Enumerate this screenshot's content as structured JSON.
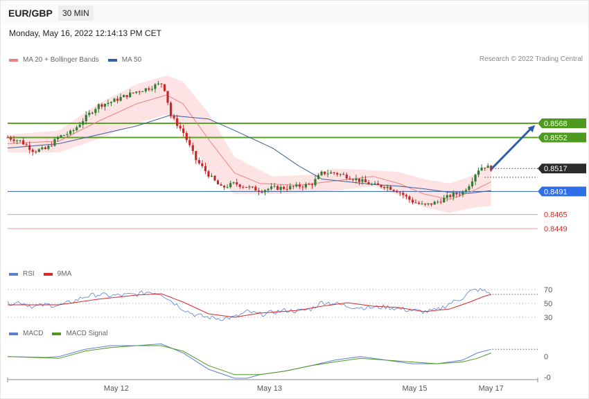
{
  "header": {
    "pair": "EUR/GBP",
    "timeframe": "30 MIN"
  },
  "datetime": "Monday, May 16, 2022 12:14:13 PM CET",
  "copyright": "Research © 2022 Trading Central",
  "legend_main": [
    {
      "label": "MA 20 + Bollinger Bands",
      "color": "#f08080"
    },
    {
      "label": "MA 50",
      "color": "#3a5e9c"
    }
  ],
  "legend_rsi": [
    {
      "label": "RSI",
      "color": "#5b7fd6"
    },
    {
      "label": "9MA",
      "color": "#d9262a"
    }
  ],
  "legend_macd": [
    {
      "label": "MACD",
      "color": "#5b7fd6"
    },
    {
      "label": "MACD Signal",
      "color": "#4e9a1e"
    }
  ],
  "chart_data": {
    "type": "candlestick",
    "x_labels": [
      {
        "label": "May 12",
        "t": 0.205
      },
      {
        "label": "May 13",
        "t": 0.494
      },
      {
        "label": "May 15",
        "t": 0.768
      },
      {
        "label": "May 17",
        "t": 0.912
      }
    ],
    "price_levels": [
      {
        "value": "0.8568",
        "kind": "resistance"
      },
      {
        "value": "0.8552",
        "kind": "resistance"
      },
      {
        "value": "0.8517",
        "kind": "current"
      },
      {
        "value": "0.8491",
        "kind": "pivot"
      },
      {
        "value": "0.8465",
        "kind": "support"
      },
      {
        "value": "0.8449",
        "kind": "support"
      }
    ],
    "price_range": [
      0.8406,
      0.8633
    ],
    "anchors": {
      "close": [
        [
          0,
          0.8552
        ],
        [
          0.024,
          0.8548
        ],
        [
          0.049,
          0.8537
        ],
        [
          0.073,
          0.8539
        ],
        [
          0.097,
          0.8553
        ],
        [
          0.121,
          0.8558
        ],
        [
          0.146,
          0.8574
        ],
        [
          0.17,
          0.8588
        ],
        [
          0.194,
          0.8592
        ],
        [
          0.218,
          0.8598
        ],
        [
          0.243,
          0.8604
        ],
        [
          0.267,
          0.8608
        ],
        [
          0.279,
          0.8611
        ],
        [
          0.291,
          0.8613
        ],
        [
          0.299,
          0.8603
        ],
        [
          0.306,
          0.8578
        ],
        [
          0.331,
          0.8558
        ],
        [
          0.355,
          0.8527
        ],
        [
          0.379,
          0.851
        ],
        [
          0.403,
          0.8495
        ],
        [
          0.428,
          0.85
        ],
        [
          0.452,
          0.8496
        ],
        [
          0.476,
          0.8492
        ],
        [
          0.5,
          0.8495
        ],
        [
          0.524,
          0.8495
        ],
        [
          0.549,
          0.8497
        ],
        [
          0.573,
          0.8499
        ],
        [
          0.593,
          0.8512
        ],
        [
          0.617,
          0.8512
        ],
        [
          0.641,
          0.8508
        ],
        [
          0.666,
          0.8503
        ],
        [
          0.69,
          0.8498
        ],
        [
          0.714,
          0.8497
        ],
        [
          0.738,
          0.8491
        ],
        [
          0.762,
          0.848
        ],
        [
          0.786,
          0.8475
        ],
        [
          0.81,
          0.8479
        ],
        [
          0.834,
          0.8486
        ],
        [
          0.858,
          0.849
        ],
        [
          0.872,
          0.85
        ],
        [
          0.886,
          0.8515
        ],
        [
          0.898,
          0.852
        ],
        [
          0.912,
          0.8517
        ]
      ],
      "ma20": [
        [
          0,
          0.8545
        ],
        [
          0.097,
          0.8548
        ],
        [
          0.17,
          0.857
        ],
        [
          0.243,
          0.859
        ],
        [
          0.3,
          0.86
        ],
        [
          0.331,
          0.859
        ],
        [
          0.379,
          0.855
        ],
        [
          0.428,
          0.8512
        ],
        [
          0.476,
          0.85
        ],
        [
          0.549,
          0.8498
        ],
        [
          0.617,
          0.8503
        ],
        [
          0.69,
          0.8508
        ],
        [
          0.738,
          0.85
        ],
        [
          0.786,
          0.8488
        ],
        [
          0.834,
          0.8482
        ],
        [
          0.872,
          0.849
        ],
        [
          0.912,
          0.8502
        ]
      ],
      "bb_upper": [
        [
          0,
          0.8555
        ],
        [
          0.097,
          0.856
        ],
        [
          0.17,
          0.859
        ],
        [
          0.243,
          0.8612
        ],
        [
          0.3,
          0.8622
        ],
        [
          0.331,
          0.8615
        ],
        [
          0.379,
          0.858
        ],
        [
          0.428,
          0.853
        ],
        [
          0.5,
          0.8508
        ],
        [
          0.573,
          0.851
        ],
        [
          0.617,
          0.8517
        ],
        [
          0.69,
          0.8515
        ],
        [
          0.738,
          0.8513
        ],
        [
          0.786,
          0.8505
        ],
        [
          0.834,
          0.85
        ],
        [
          0.872,
          0.8508
        ],
        [
          0.912,
          0.852
        ]
      ],
      "bb_lower": [
        [
          0,
          0.8535
        ],
        [
          0.097,
          0.8535
        ],
        [
          0.17,
          0.855
        ],
        [
          0.243,
          0.8568
        ],
        [
          0.3,
          0.8578
        ],
        [
          0.331,
          0.856
        ],
        [
          0.379,
          0.8515
        ],
        [
          0.428,
          0.8488
        ],
        [
          0.5,
          0.8488
        ],
        [
          0.573,
          0.849
        ],
        [
          0.617,
          0.8492
        ],
        [
          0.69,
          0.8497
        ],
        [
          0.738,
          0.8487
        ],
        [
          0.786,
          0.8473
        ],
        [
          0.834,
          0.8467
        ],
        [
          0.872,
          0.8472
        ],
        [
          0.912,
          0.8475
        ]
      ],
      "ma50": [
        [
          0,
          0.854
        ],
        [
          0.097,
          0.8545
        ],
        [
          0.17,
          0.8555
        ],
        [
          0.243,
          0.8565
        ],
        [
          0.306,
          0.8577
        ],
        [
          0.379,
          0.8573
        ],
        [
          0.428,
          0.856
        ],
        [
          0.5,
          0.854
        ],
        [
          0.549,
          0.852
        ],
        [
          0.593,
          0.8505
        ],
        [
          0.641,
          0.8502
        ],
        [
          0.69,
          0.8499
        ],
        [
          0.738,
          0.8497
        ],
        [
          0.786,
          0.8494
        ],
        [
          0.834,
          0.849
        ],
        [
          0.872,
          0.8489
        ],
        [
          0.912,
          0.8492
        ]
      ]
    },
    "forecast": {
      "from": [
        0.912,
        0.8516
      ],
      "to": [
        0.995,
        0.8566
      ]
    },
    "rsi": {
      "ylim": [
        20,
        80
      ],
      "ticks": [
        "70",
        "50",
        "30"
      ],
      "rsi": [
        [
          0,
          50
        ],
        [
          0.024,
          52
        ],
        [
          0.049,
          45
        ],
        [
          0.073,
          48
        ],
        [
          0.097,
          47
        ],
        [
          0.121,
          52
        ],
        [
          0.146,
          60
        ],
        [
          0.17,
          63
        ],
        [
          0.194,
          61
        ],
        [
          0.218,
          62
        ],
        [
          0.243,
          63
        ],
        [
          0.267,
          67
        ],
        [
          0.29,
          64
        ],
        [
          0.306,
          55
        ],
        [
          0.331,
          42
        ],
        [
          0.355,
          33
        ],
        [
          0.379,
          30
        ],
        [
          0.403,
          28
        ],
        [
          0.428,
          30
        ],
        [
          0.452,
          38
        ],
        [
          0.476,
          34
        ],
        [
          0.5,
          37
        ],
        [
          0.524,
          40
        ],
        [
          0.549,
          39
        ],
        [
          0.573,
          42
        ],
        [
          0.593,
          52
        ],
        [
          0.617,
          50
        ],
        [
          0.641,
          46
        ],
        [
          0.666,
          44
        ],
        [
          0.69,
          44
        ],
        [
          0.714,
          45
        ],
        [
          0.738,
          42
        ],
        [
          0.762,
          40
        ],
        [
          0.786,
          38
        ],
        [
          0.81,
          40
        ],
        [
          0.834,
          50
        ],
        [
          0.858,
          58
        ],
        [
          0.872,
          67
        ],
        [
          0.886,
          70
        ],
        [
          0.898,
          68
        ],
        [
          0.912,
          64
        ]
      ],
      "ma9": [
        [
          0,
          48
        ],
        [
          0.097,
          48
        ],
        [
          0.17,
          56
        ],
        [
          0.243,
          62
        ],
        [
          0.29,
          64
        ],
        [
          0.331,
          52
        ],
        [
          0.379,
          35
        ],
        [
          0.428,
          30
        ],
        [
          0.476,
          36
        ],
        [
          0.549,
          40
        ],
        [
          0.593,
          46
        ],
        [
          0.641,
          51
        ],
        [
          0.69,
          46
        ],
        [
          0.738,
          44
        ],
        [
          0.786,
          38
        ],
        [
          0.834,
          42
        ],
        [
          0.872,
          52
        ],
        [
          0.898,
          60
        ],
        [
          0.912,
          63
        ]
      ]
    },
    "macd": {
      "ylim": [
        -0.0012,
        0.0011
      ],
      "ticks": [
        "0",
        "-0"
      ],
      "macd": [
        [
          0,
          0.0
        ],
        [
          0.073,
          -5e-05
        ],
        [
          0.097,
          0.0
        ],
        [
          0.146,
          0.0004
        ],
        [
          0.194,
          0.0006
        ],
        [
          0.243,
          0.0006
        ],
        [
          0.29,
          0.0007
        ],
        [
          0.331,
          0.0002
        ],
        [
          0.379,
          -0.0007
        ],
        [
          0.428,
          -0.0012
        ],
        [
          0.452,
          -0.0012
        ],
        [
          0.476,
          -0.001
        ],
        [
          0.524,
          -0.0008
        ],
        [
          0.573,
          -0.0005
        ],
        [
          0.617,
          -0.0002
        ],
        [
          0.666,
          0.0
        ],
        [
          0.714,
          -0.0002
        ],
        [
          0.762,
          -0.0004
        ],
        [
          0.81,
          -0.0004
        ],
        [
          0.858,
          -0.0002
        ],
        [
          0.886,
          0.0002
        ],
        [
          0.912,
          0.0004
        ]
      ],
      "signal": [
        [
          0,
          0.0
        ],
        [
          0.097,
          -0.0001
        ],
        [
          0.146,
          0.0003
        ],
        [
          0.194,
          0.0005
        ],
        [
          0.243,
          0.0006
        ],
        [
          0.29,
          0.0006
        ],
        [
          0.331,
          0.0003
        ],
        [
          0.379,
          -0.0005
        ],
        [
          0.428,
          -0.001
        ],
        [
          0.476,
          -0.001
        ],
        [
          0.524,
          -0.0008
        ],
        [
          0.573,
          -0.0005
        ],
        [
          0.617,
          -0.0003
        ],
        [
          0.666,
          -0.0001
        ],
        [
          0.714,
          -0.0002
        ],
        [
          0.762,
          -0.0003
        ],
        [
          0.81,
          -0.0004
        ],
        [
          0.858,
          -0.0003
        ],
        [
          0.886,
          -0.0001
        ],
        [
          0.912,
          0.0002
        ]
      ]
    }
  }
}
